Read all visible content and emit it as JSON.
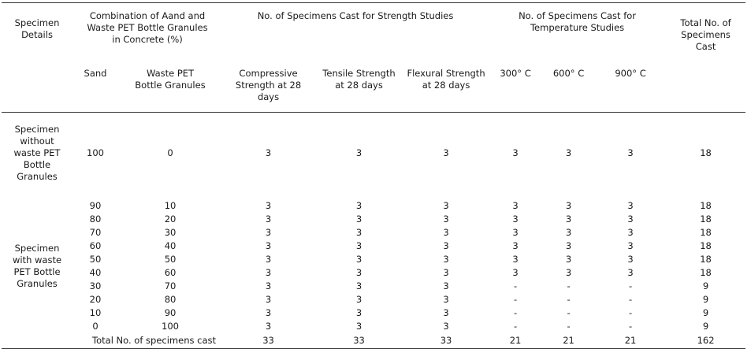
{
  "headers": {
    "specimen_details": "Specimen Details",
    "combination": "Combination of Aand and Waste PET Bottle Granules in Concrete (%)",
    "strength_group": "No. of Specimens Cast for Strength Studies",
    "temperature_group": "No. of Specimens Cast for Temperature Studies",
    "total": "Total No. of Specimens Cast",
    "sand": "Sand",
    "waste_pet": "Waste PET Bottle Granules",
    "compressive": "Compressive Strength at 28 days",
    "tensile": "Tensile Strength at 28 days",
    "flexural": "Flexural Strength at 28 days",
    "t300": "300° C",
    "t600": "600° C",
    "t900": "900° C"
  },
  "groups": {
    "without": "Specimen without waste PET Bottle Granules",
    "with": "Specimen with waste PET Bottle Granules"
  },
  "rows": [
    [
      "100",
      "0",
      "3",
      "3",
      "3",
      "3",
      "3",
      "3",
      "18"
    ],
    [
      "90",
      "10",
      "3",
      "3",
      "3",
      "3",
      "3",
      "3",
      "18"
    ],
    [
      "80",
      "20",
      "3",
      "3",
      "3",
      "3",
      "3",
      "3",
      "18"
    ],
    [
      "70",
      "30",
      "3",
      "3",
      "3",
      "3",
      "3",
      "3",
      "18"
    ],
    [
      "60",
      "40",
      "3",
      "3",
      "3",
      "3",
      "3",
      "3",
      "18"
    ],
    [
      "50",
      "50",
      "3",
      "3",
      "3",
      "3",
      "3",
      "3",
      "18"
    ],
    [
      "40",
      "60",
      "3",
      "3",
      "3",
      "3",
      "3",
      "3",
      "18"
    ],
    [
      "30",
      "70",
      "3",
      "3",
      "3",
      "-",
      "-",
      "-",
      "9"
    ],
    [
      "20",
      "80",
      "3",
      "3",
      "3",
      "-",
      "-",
      "-",
      "9"
    ],
    [
      "10",
      "90",
      "3",
      "3",
      "3",
      "-",
      "-",
      "-",
      "9"
    ],
    [
      "0",
      "100",
      "3",
      "3",
      "3",
      "-",
      "-",
      "-",
      "9"
    ]
  ],
  "total_row": {
    "label": "Total No. of specimens cast",
    "values": [
      "33",
      "33",
      "33",
      "21",
      "21",
      "21",
      "162"
    ]
  }
}
